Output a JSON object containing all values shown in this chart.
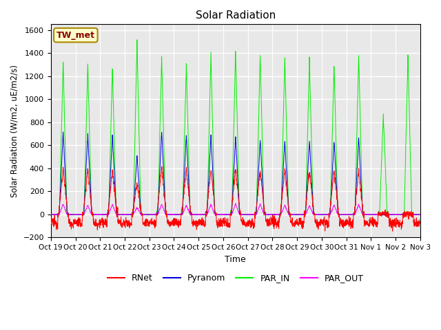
{
  "title": "Solar Radiation",
  "ylabel": "Solar Radiation (W/m2, uE/m2/s)",
  "xlabel": "Time",
  "ylim": [
    -200,
    1650
  ],
  "yticks": [
    -200,
    0,
    200,
    400,
    600,
    800,
    1000,
    1200,
    1400,
    1600
  ],
  "x_labels": [
    "Oct 19",
    "Oct 20",
    "Oct 21",
    "Oct 22",
    "Oct 23",
    "Oct 24",
    "Oct 25",
    "Oct 26",
    "Oct 27",
    "Oct 28",
    "Oct 29",
    "Oct 30",
    "Oct 31",
    "Nov 1",
    "Nov 2",
    "Nov 3"
  ],
  "station_label": "TW_met",
  "colors": {
    "RNet": "#ff0000",
    "Pyranom": "#0000dd",
    "PAR_IN": "#00ee00",
    "PAR_OUT": "#ff00ff"
  },
  "background_color": "#e8e8e8",
  "grid_color": "#ffffff",
  "n_days": 15,
  "points_per_day": 144,
  "day_peaks": {
    "RNet": [
      400,
      390,
      380,
      270,
      420,
      400,
      395,
      400,
      390,
      385,
      380,
      380,
      375,
      10,
      10
    ],
    "Pyranom": [
      710,
      690,
      680,
      510,
      720,
      690,
      685,
      670,
      650,
      640,
      645,
      640,
      665,
      10,
      10
    ],
    "PAR_IN": [
      1320,
      1300,
      1270,
      1500,
      1360,
      1300,
      1390,
      1430,
      1390,
      1360,
      1350,
      1295,
      1380,
      860,
      1380
    ],
    "PAR_OUT": [
      90,
      80,
      85,
      60,
      85,
      80,
      85,
      90,
      90,
      80,
      75,
      80,
      85,
      10,
      10
    ]
  },
  "night_rnet": -75
}
